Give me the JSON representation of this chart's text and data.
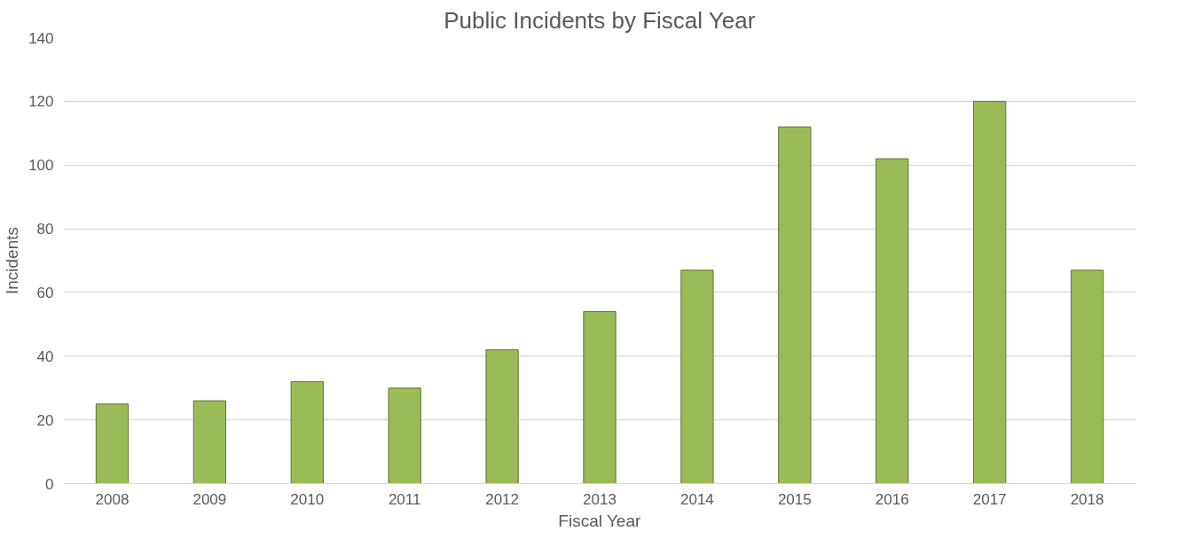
{
  "chart_data": {
    "type": "bar",
    "title": "Public Incidents by Fiscal Year",
    "xlabel": "Fiscal Year",
    "ylabel": "Incidents",
    "categories": [
      "2008",
      "2009",
      "2010",
      "2011",
      "2012",
      "2013",
      "2014",
      "2015",
      "2016",
      "2017",
      "2018"
    ],
    "values": [
      25,
      26,
      32,
      30,
      42,
      54,
      67,
      112,
      102,
      120,
      67
    ],
    "color": "#9bbb59",
    "ylim": [
      0,
      140
    ],
    "yticks": [
      0,
      20,
      40,
      60,
      80,
      100,
      120,
      140
    ],
    "grid": "y"
  }
}
